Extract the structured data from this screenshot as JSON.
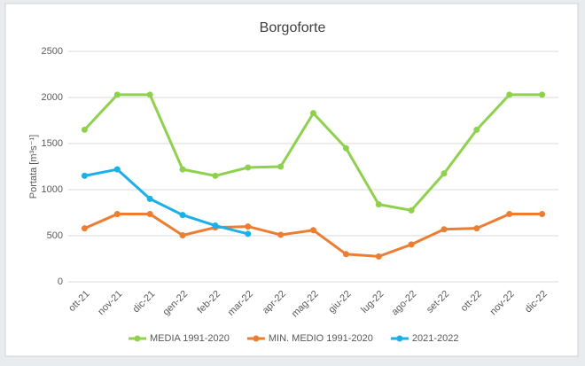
{
  "chart_data": {
    "type": "line",
    "title": "Borgoforte",
    "y_label": "Portata [m³s⁻¹]",
    "categories": [
      "ott-21",
      "nov-21",
      "dic-21",
      "gen-22",
      "feb-22",
      "mar-22",
      "apr-22",
      "mag-22",
      "giu-22",
      "lug-22",
      "ago-22",
      "set-22",
      "ott-22",
      "nov-22",
      "dic-22"
    ],
    "series": [
      {
        "name": "MEDIA 1991-2020",
        "color": "#8fd14f",
        "values": [
          1650,
          2030,
          2030,
          1220,
          1150,
          1240,
          1250,
          1830,
          1450,
          840,
          775,
          1175,
          1650,
          2030,
          2030
        ]
      },
      {
        "name": "MIN. MEDIO 1991-2020",
        "color": "#ed7d31",
        "values": [
          580,
          735,
          735,
          505,
          590,
          600,
          510,
          560,
          300,
          275,
          405,
          570,
          580,
          735,
          735
        ]
      },
      {
        "name": "2021-2022",
        "color": "#1ab0e8",
        "values": [
          1150,
          1220,
          900,
          725,
          610,
          520,
          null,
          null,
          null,
          null,
          null,
          null,
          null,
          null,
          null
        ]
      }
    ],
    "ylim": [
      0,
      2500
    ],
    "yticks": [
      0,
      500,
      1000,
      1500,
      2000,
      2500
    ],
    "grid": true,
    "legend": "bottom"
  }
}
